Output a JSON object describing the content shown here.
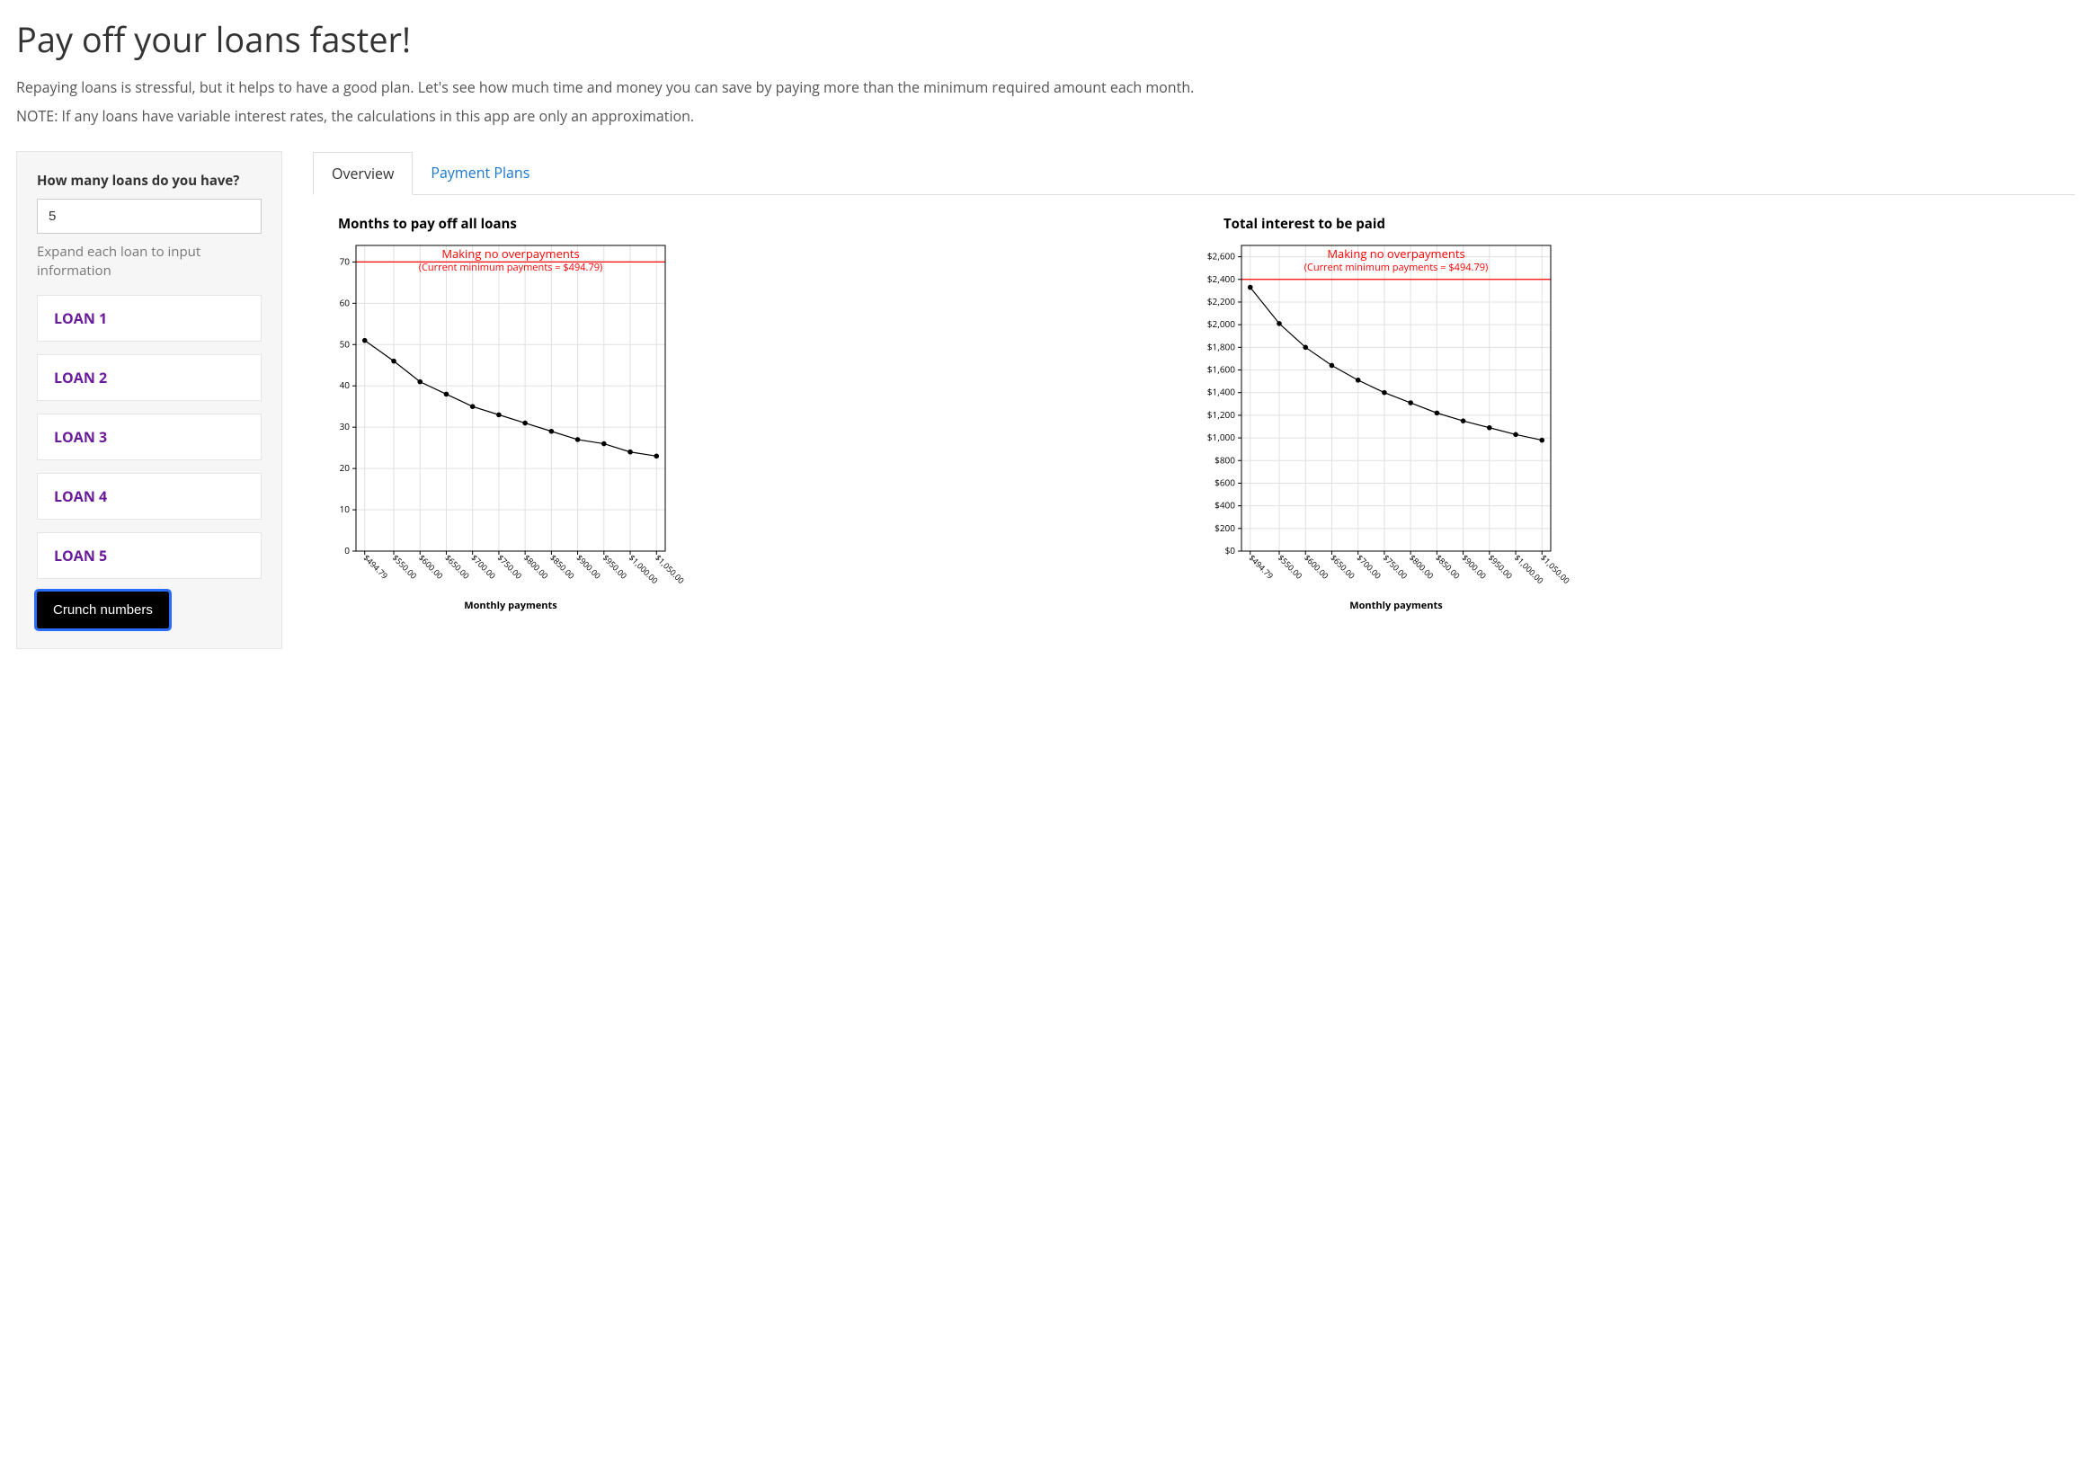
{
  "header": {
    "title": "Pay off your loans faster!",
    "description": "Repaying loans is stressful, but it helps to have a good plan. Let's see how much time and money you can save by paying more than the minimum required amount each month.",
    "note": "NOTE: If any loans have variable interest rates, the calculations in this app are only an approximation."
  },
  "sidebar": {
    "loan_count_label": "How many loans do you have?",
    "loan_count_value": "5",
    "hint": "Expand each loan to input information",
    "loans": [
      "LOAN 1",
      "LOAN 2",
      "LOAN 3",
      "LOAN 4",
      "LOAN 5"
    ],
    "crunch_label": "Crunch numbers"
  },
  "tabs": {
    "overview": "Overview",
    "plans": "Payment Plans"
  },
  "charts": {
    "x_tick_labels": [
      "$494.79",
      "$550.00",
      "$600.00",
      "$650.00",
      "$700.00",
      "$750.00",
      "$800.00",
      "$850.00",
      "$900.00",
      "$950.00",
      "$1,000.00",
      "$1,050.00"
    ],
    "x_numeric": [
      494.79,
      550,
      600,
      650,
      700,
      750,
      800,
      850,
      900,
      950,
      1000,
      1050
    ],
    "xlabel": "Monthly payments",
    "annotation_title": "Making no overpayments",
    "annotation_sub": "(Current minimum payments = $494.79)",
    "annotation_color": "#ff0000",
    "hline_color": "#ff0000",
    "background_color": "#ffffff",
    "grid_color": "#e0e0e0",
    "line_color": "#000000",
    "marker_color": "#000000",
    "marker_radius": 2.8,
    "months_chart": {
      "title": "Months to pay off all loans",
      "type": "line",
      "y_ticks": [
        0,
        10,
        20,
        30,
        40,
        50,
        60,
        70
      ],
      "ylim": [
        0,
        74
      ],
      "hline_value": 70,
      "values": [
        51,
        46,
        41,
        38,
        35,
        33,
        31,
        29,
        27,
        26,
        24,
        23
      ]
    },
    "interest_chart": {
      "title": "Total interest to be paid",
      "type": "line",
      "y_ticks": [
        0,
        200,
        400,
        600,
        800,
        1000,
        1200,
        1400,
        1600,
        1800,
        2000,
        2200,
        2400,
        2600
      ],
      "y_tick_labels": [
        "$0",
        "$200",
        "$400",
        "$600",
        "$800",
        "$1,000",
        "$1,200",
        "$1,400",
        "$1,600",
        "$1,800",
        "$2,000",
        "$2,200",
        "$2,400",
        "$2,600"
      ],
      "ylim": [
        0,
        2700
      ],
      "hline_value": 2400,
      "values": [
        2330,
        2010,
        1800,
        1640,
        1510,
        1400,
        1310,
        1220,
        1150,
        1090,
        1030,
        980
      ]
    }
  }
}
